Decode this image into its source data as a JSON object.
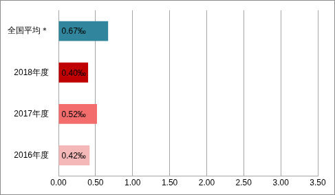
{
  "chart_data": {
    "type": "bar",
    "orientation": "horizontal",
    "categories": [
      "全国平均＊",
      "2018年度",
      "2017年度",
      "2016年度"
    ],
    "values": [
      0.67,
      0.4,
      0.52,
      0.42
    ],
    "value_labels": [
      "0.67‰",
      "0.40‰",
      "0.52‰",
      "0.42‰"
    ],
    "colors": [
      "#31859c",
      "#c00000",
      "#f26d6b",
      "#f4b8b8"
    ],
    "xlim": [
      0,
      3.5
    ],
    "xticks": [
      {
        "value": 0,
        "label": "0.00"
      },
      {
        "value": 0.5,
        "label": "0.50"
      },
      {
        "value": 1,
        "label": "1.00"
      },
      {
        "value": 1.5,
        "label": "1.50"
      },
      {
        "value": 2,
        "label": "2.00"
      },
      {
        "value": 2.5,
        "label": "2.50"
      },
      {
        "value": 3,
        "label": "3.00"
      },
      {
        "value": 3.5,
        "label": "3.50"
      }
    ],
    "grid": true,
    "data_labels": true
  }
}
